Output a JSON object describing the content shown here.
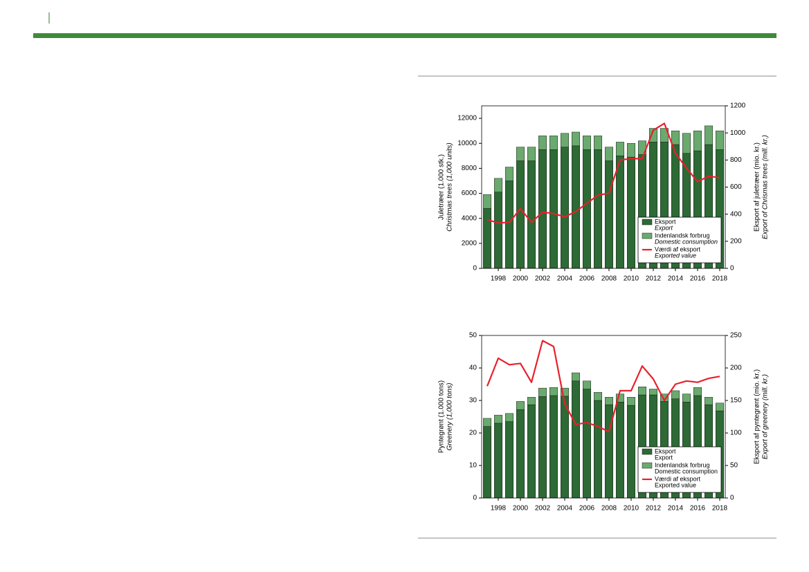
{
  "chart_data": [
    {
      "type": "bar",
      "x": [
        1997,
        1998,
        1999,
        2000,
        2001,
        2002,
        2003,
        2004,
        2005,
        2006,
        2007,
        2008,
        2009,
        2010,
        2011,
        2012,
        2013,
        2014,
        2015,
        2016,
        2017,
        2018
      ],
      "xlim": [
        1996.5,
        2018.5
      ],
      "xticks": [
        1998,
        2000,
        2002,
        2004,
        2006,
        2008,
        2010,
        2012,
        2014,
        2016,
        2018
      ],
      "ylim": [
        0,
        13000
      ],
      "yticks": [
        0,
        2000,
        4000,
        6000,
        8000,
        10000,
        12000
      ],
      "y2lim": [
        0,
        1200
      ],
      "y2ticks": [
        0,
        200,
        400,
        600,
        800,
        1000,
        1200
      ],
      "ylabel": "Juletræer (1.000 stk.)",
      "ylabel_en": "Christmas trees (1,000 units)",
      "y2label": "Eksport af juletræer (mio. kr.)",
      "y2label_en": "Export of Chrismas trees (mill. kr.)",
      "legend": "lower right",
      "series": [
        {
          "name": "Eksport",
          "name_en": "Export",
          "color": "#2d6a35",
          "type": "bar",
          "values": [
            4800,
            6100,
            7000,
            8600,
            8600,
            9500,
            9500,
            9700,
            9800,
            9500,
            9500,
            8600,
            9000,
            8900,
            9100,
            10100,
            10100,
            9900,
            9200,
            9400,
            9900,
            9500
          ]
        },
        {
          "name": "Indenlandsk forbrug",
          "name_en": "Domestic consumption",
          "color": "#6aaa6e",
          "type": "bar",
          "values": [
            1100,
            1100,
            1100,
            1100,
            1100,
            1100,
            1100,
            1100,
            1100,
            1100,
            1100,
            1100,
            1100,
            1100,
            1100,
            1100,
            1100,
            1100,
            1600,
            1600,
            1500,
            1500
          ]
        },
        {
          "name": "Værdi af eksport",
          "name_en": "Exported value",
          "color": "#e8202a",
          "type": "line",
          "axis": "y2",
          "values": [
            360,
            335,
            340,
            440,
            340,
            415,
            405,
            380,
            420,
            480,
            540,
            555,
            800,
            810,
            810,
            1020,
            1070,
            850,
            740,
            640,
            680,
            670
          ]
        }
      ]
    },
    {
      "type": "bar",
      "x": [
        1997,
        1998,
        1999,
        2000,
        2001,
        2002,
        2003,
        2004,
        2005,
        2006,
        2007,
        2008,
        2009,
        2010,
        2011,
        2012,
        2013,
        2014,
        2015,
        2016,
        2017,
        2018
      ],
      "xlim": [
        1996.5,
        2018.5
      ],
      "xticks": [
        1998,
        2000,
        2002,
        2004,
        2006,
        2008,
        2010,
        2012,
        2014,
        2016,
        2018
      ],
      "ylim": [
        0,
        50
      ],
      "yticks": [
        0,
        10,
        20,
        30,
        40,
        50
      ],
      "y2lim": [
        0,
        250
      ],
      "y2ticks": [
        0,
        50,
        100,
        150,
        200,
        250
      ],
      "ylabel": "Pyntegrønt (1.000 tons)",
      "ylabel_en": "Greenery (1,000 tons)",
      "y2label": "Eksport af pyntegrønt (mio. kr.)",
      "y2label_en": "Export of greenery (mill. kr.)",
      "legend": "lower right",
      "series": [
        {
          "name": "Eksport",
          "name_en": "Export",
          "color": "#2d6a35",
          "type": "bar",
          "values": [
            22,
            23,
            23.5,
            27.2,
            28.7,
            31.2,
            31.5,
            31.3,
            36,
            33.5,
            30,
            28.7,
            29.5,
            28.5,
            31.7,
            31.7,
            29.7,
            30.5,
            29.5,
            31.5,
            28.7,
            26.8
          ]
        },
        {
          "name": "Indenlandsk forbrug",
          "name_en": "Domestic consumption",
          "color": "#6aaa6e",
          "type": "bar",
          "values": [
            2.5,
            2.5,
            2.5,
            2.5,
            2.3,
            2.6,
            2.5,
            2.5,
            2.5,
            2.5,
            2.5,
            2.3,
            2.5,
            2.5,
            2.5,
            1.8,
            2.3,
            2.5,
            2.5,
            2.5,
            2.3,
            2.4
          ]
        },
        {
          "name": "Værdi af eksport",
          "name_en": "Exported value",
          "color": "#e8202a",
          "type": "line",
          "axis": "y2",
          "values": [
            172,
            215,
            205,
            207,
            178,
            242,
            233,
            145,
            113,
            116,
            110,
            102,
            165,
            165,
            203,
            183,
            150,
            175,
            180,
            178,
            184,
            187
          ]
        }
      ]
    }
  ]
}
